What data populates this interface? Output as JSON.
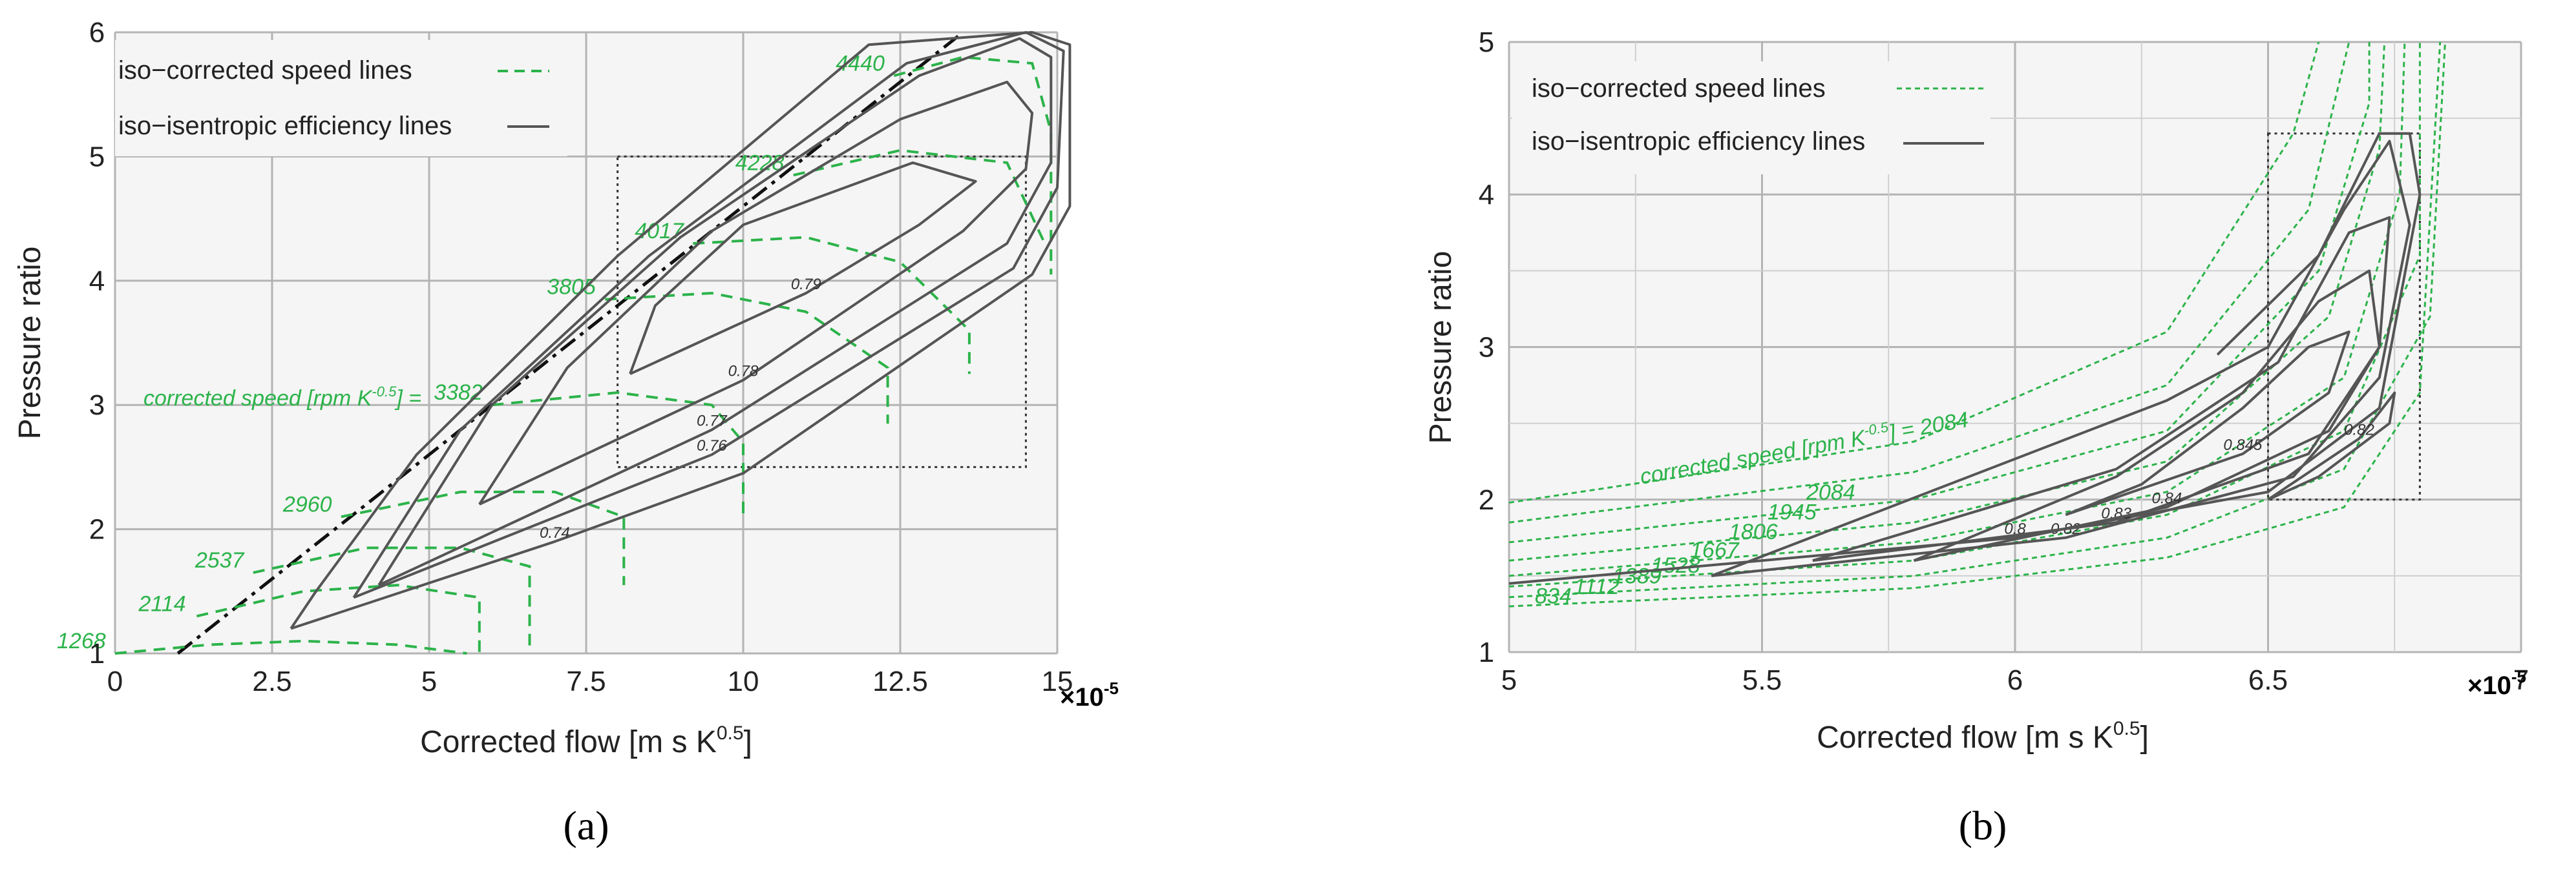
{
  "chart_data": [
    {
      "type": "line",
      "panel_label": "(a)",
      "xlabel": "Corrected  flow [m s K",
      "xlabel_sup": "0.5",
      "xlabel_end": "]",
      "ylabel": "Pressure ratio",
      "x_multiplier": "×10",
      "x_multiplier_exp": "-5",
      "xlim": [
        0,
        15
      ],
      "ylim": [
        1,
        6
      ],
      "xticks": [
        0,
        2.5,
        5,
        7.5,
        10,
        12.5,
        15
      ],
      "xtick_labels": [
        "0",
        "2.5",
        "5",
        "7.5",
        "10",
        "12.5",
        "15"
      ],
      "yticks": [
        1,
        2,
        3,
        4,
        5,
        6
      ],
      "ytick_labels": [
        "1",
        "2",
        "3",
        "4",
        "5",
        "6"
      ],
      "grid": true,
      "legend": [
        {
          "label": "iso−corrected speed lines",
          "style": "dashed",
          "color": "#2cb34a"
        },
        {
          "label": "iso−isentropic efficiency lines",
          "style": "solid",
          "color": "#555555"
        }
      ],
      "speed_prefix": "corrected speed [rpm K",
      "speed_prefix_sup": "-0.5",
      "speed_prefix_end": "] =",
      "zoom_box": {
        "x": [
          8,
          14.5
        ],
        "y": [
          2.5,
          5
        ]
      },
      "surge_line": [
        [
          1,
          1
        ],
        [
          13.5,
          6
        ]
      ],
      "speed_lines": [
        {
          "label": "1268",
          "points": [
            [
              0,
              1.0
            ],
            [
              1.5,
              1.07
            ],
            [
              3,
              1.1
            ],
            [
              4.5,
              1.07
            ],
            [
              5.6,
              1.0
            ]
          ]
        },
        {
          "label": "2114",
          "points": [
            [
              1.3,
              1.3
            ],
            [
              3,
              1.5
            ],
            [
              4.5,
              1.55
            ],
            [
              5.8,
              1.45
            ],
            [
              5.8,
              1.0
            ]
          ]
        },
        {
          "label": "2537",
          "points": [
            [
              2.2,
              1.65
            ],
            [
              4,
              1.85
            ],
            [
              5.5,
              1.85
            ],
            [
              6.6,
              1.7
            ],
            [
              6.6,
              1.05
            ]
          ]
        },
        {
          "label": "2960",
          "points": [
            [
              3.6,
              2.1
            ],
            [
              5.5,
              2.3
            ],
            [
              7,
              2.3
            ],
            [
              8.1,
              2.1
            ],
            [
              8.1,
              1.55
            ]
          ]
        },
        {
          "label": "3382",
          "points": [
            [
              6,
              3.0
            ],
            [
              8,
              3.1
            ],
            [
              9.5,
              3.0
            ],
            [
              10,
              2.7
            ],
            [
              10,
              2.1
            ]
          ]
        },
        {
          "label": "3805",
          "points": [
            [
              7.8,
              3.85
            ],
            [
              9.5,
              3.9
            ],
            [
              11,
              3.75
            ],
            [
              12.3,
              3.3
            ],
            [
              12.3,
              2.85
            ]
          ]
        },
        {
          "label": "4017",
          "points": [
            [
              9.2,
              4.3
            ],
            [
              11,
              4.35
            ],
            [
              12.5,
              4.15
            ],
            [
              13.6,
              3.6
            ],
            [
              13.6,
              3.25
            ]
          ]
        },
        {
          "label": "4228",
          "points": [
            [
              10.8,
              4.85
            ],
            [
              12.5,
              5.05
            ],
            [
              14.2,
              4.95
            ],
            [
              14.8,
              4.3
            ]
          ]
        },
        {
          "label": "4440",
          "points": [
            [
              12.4,
              5.65
            ],
            [
              13.5,
              5.8
            ],
            [
              14.6,
              5.75
            ],
            [
              14.9,
              5.2
            ],
            [
              14.9,
              4.05
            ]
          ]
        }
      ],
      "efficiency_lines": [
        {
          "label": "0.79",
          "points": [
            [
              8.2,
              3.25
            ],
            [
              11,
              3.9
            ],
            [
              12.8,
              4.45
            ],
            [
              13.7,
              4.8
            ],
            [
              12.7,
              4.95
            ],
            [
              10,
              4.45
            ],
            [
              8.6,
              3.8
            ],
            [
              8.2,
              3.25
            ]
          ]
        },
        {
          "label": "0.78",
          "points": [
            [
              5.8,
              2.2
            ],
            [
              10,
              3.2
            ],
            [
              13.5,
              4.4
            ],
            [
              14.5,
              4.9
            ],
            [
              14.6,
              5.35
            ],
            [
              14.2,
              5.6
            ],
            [
              12.5,
              5.3
            ],
            [
              9.5,
              4.4
            ],
            [
              7.2,
              3.3
            ],
            [
              5.8,
              2.2
            ]
          ]
        },
        {
          "label": "0.77",
          "points": [
            [
              4.2,
              1.55
            ],
            [
              9.5,
              2.8
            ],
            [
              14.2,
              4.3
            ],
            [
              14.9,
              4.95
            ],
            [
              14.9,
              5.8
            ],
            [
              14.4,
              5.95
            ],
            [
              12.8,
              5.65
            ],
            [
              9,
              4.35
            ],
            [
              6,
              3.0
            ],
            [
              4.2,
              1.55
            ]
          ]
        },
        {
          "label": "0.76",
          "points": [
            [
              3.8,
              1.45
            ],
            [
              9.5,
              2.6
            ],
            [
              14.3,
              4.1
            ],
            [
              15.0,
              4.75
            ],
            [
              15.1,
              5.85
            ],
            [
              14.5,
              6.0
            ],
            [
              12.6,
              5.75
            ],
            [
              8.5,
              4.2
            ],
            [
              5.5,
              2.8
            ],
            [
              3.8,
              1.45
            ]
          ]
        },
        {
          "label": "0.74",
          "points": [
            [
              2.8,
              1.2
            ],
            [
              7,
              1.9
            ],
            [
              10,
              2.45
            ],
            [
              14.6,
              4.05
            ],
            [
              15.2,
              4.6
            ],
            [
              15.2,
              5.9
            ],
            [
              14.6,
              6.0
            ],
            [
              12.0,
              5.9
            ],
            [
              8.0,
              4.2
            ],
            [
              4.8,
              2.6
            ],
            [
              3.2,
              1.5
            ],
            [
              2.8,
              1.2
            ]
          ]
        }
      ]
    },
    {
      "type": "line",
      "panel_label": "(b)",
      "xlabel": "Corrected  flow [m s K",
      "xlabel_sup": "0.5",
      "xlabel_end": "]",
      "ylabel": "Pressure ratio",
      "x_multiplier": "×10",
      "x_multiplier_exp": "-5",
      "xlim": [
        5,
        7
      ],
      "ylim": [
        1,
        5
      ],
      "xticks": [
        5,
        5.5,
        6,
        6.5,
        7
      ],
      "xtick_labels": [
        "5",
        "5.5",
        "6",
        "6.5",
        "7"
      ],
      "yticks": [
        1,
        2,
        3,
        4,
        5
      ],
      "ytick_labels": [
        "1",
        "2",
        "3",
        "4",
        "5"
      ],
      "grid": true,
      "legend": [
        {
          "label": "iso−corrected speed lines",
          "style": "dashed",
          "color": "#2cb34a"
        },
        {
          "label": "iso−isentropic efficiency lines",
          "style": "solid",
          "color": "#555555"
        }
      ],
      "speed_prefix": "corrected speed [rpm K",
      "speed_prefix_sup": "-0.5",
      "speed_prefix_end": "] = 2084",
      "zoom_box": {
        "x": [
          6.5,
          6.8
        ],
        "y": [
          2,
          4.4
        ]
      },
      "speed_lines": [
        {
          "label": "834",
          "points": [
            [
              5,
              1.3
            ],
            [
              5.8,
              1.42
            ],
            [
              6.3,
              1.62
            ],
            [
              6.65,
              1.95
            ],
            [
              6.8,
              2.7
            ],
            [
              6.84,
              5.0
            ]
          ]
        },
        {
          "label": "1112",
          "points": [
            [
              5,
              1.36
            ],
            [
              5.8,
              1.5
            ],
            [
              6.3,
              1.75
            ],
            [
              6.65,
              2.2
            ],
            [
              6.82,
              3.2
            ],
            [
              6.85,
              5.0
            ]
          ]
        },
        {
          "label": "1389",
          "points": [
            [
              5,
              1.43
            ],
            [
              5.8,
              1.6
            ],
            [
              6.3,
              1.9
            ],
            [
              6.65,
              2.45
            ],
            [
              6.8,
              3.6
            ],
            [
              6.8,
              5.0
            ]
          ]
        },
        {
          "label": "1528",
          "points": [
            [
              5,
              1.5
            ],
            [
              5.8,
              1.72
            ],
            [
              6.3,
              2.05
            ],
            [
              6.65,
              2.8
            ],
            [
              6.76,
              4.0
            ],
            [
              6.77,
              5.0
            ]
          ]
        },
        {
          "label": "1667",
          "points": [
            [
              5,
              1.6
            ],
            [
              5.8,
              1.85
            ],
            [
              6.3,
              2.25
            ],
            [
              6.62,
              3.2
            ],
            [
              6.72,
              4.3
            ],
            [
              6.73,
              5.0
            ]
          ]
        },
        {
          "label": "1806",
          "points": [
            [
              5,
              1.72
            ],
            [
              5.8,
              2.0
            ],
            [
              6.3,
              2.45
            ],
            [
              6.6,
              3.5
            ],
            [
              6.7,
              4.6
            ],
            [
              6.7,
              5.0
            ]
          ]
        },
        {
          "label": "1945",
          "points": [
            [
              5,
              1.85
            ],
            [
              5.8,
              2.18
            ],
            [
              6.3,
              2.75
            ],
            [
              6.58,
              3.9
            ],
            [
              6.66,
              5.0
            ]
          ]
        },
        {
          "label": "2084",
          "points": [
            [
              5,
              1.98
            ],
            [
              5.8,
              2.38
            ],
            [
              6.3,
              3.1
            ],
            [
              6.55,
              4.4
            ],
            [
              6.6,
              5.0
            ]
          ]
        }
      ],
      "efficiency_lines": [
        {
          "label": "0.8",
          "points": [
            [
              5,
              1.45
            ],
            [
              6.0,
              1.75
            ],
            [
              6.5,
              2.05
            ],
            [
              6.72,
              2.6
            ],
            [
              6.8,
              4.0
            ],
            [
              6.78,
              4.4
            ],
            [
              6.72,
              4.4
            ],
            [
              6.6,
              3.6
            ],
            [
              6.4,
              2.95
            ]
          ]
        },
        {
          "label": "0.82",
          "points": [
            [
              5.4,
              1.5
            ],
            [
              6.1,
              1.75
            ],
            [
              6.55,
              2.15
            ],
            [
              6.72,
              2.8
            ],
            [
              6.78,
              3.8
            ],
            [
              6.74,
              4.35
            ],
            [
              6.65,
              3.9
            ],
            [
              6.5,
              3.0
            ],
            [
              6.3,
              2.65
            ],
            [
              5.4,
              1.5
            ]
          ]
        },
        {
          "label": "0.83",
          "points": [
            [
              5.6,
              1.6
            ],
            [
              6.2,
              1.85
            ],
            [
              6.58,
              2.3
            ],
            [
              6.72,
              3.0
            ],
            [
              6.74,
              3.85
            ],
            [
              6.66,
              3.75
            ],
            [
              6.52,
              2.9
            ],
            [
              6.2,
              2.2
            ],
            [
              5.6,
              1.6
            ]
          ]
        },
        {
          "label": "0.84",
          "points": [
            [
              5.8,
              1.6
            ],
            [
              6.3,
              1.95
            ],
            [
              6.62,
              2.45
            ],
            [
              6.72,
              3.0
            ],
            [
              6.7,
              3.5
            ],
            [
              6.6,
              3.3
            ],
            [
              6.45,
              2.7
            ],
            [
              6.2,
              2.15
            ],
            [
              5.8,
              1.6
            ]
          ]
        },
        {
          "label": "0.845",
          "points": [
            [
              6.1,
              1.9
            ],
            [
              6.45,
              2.3
            ],
            [
              6.62,
              2.7
            ],
            [
              6.66,
              3.1
            ],
            [
              6.58,
              3.0
            ],
            [
              6.45,
              2.6
            ],
            [
              6.25,
              2.1
            ],
            [
              6.1,
              1.9
            ]
          ]
        },
        {
          "label": "0.82",
          "points": [
            [
              6.5,
              2.0
            ],
            [
              6.68,
              2.4
            ],
            [
              6.75,
              2.7
            ],
            [
              6.74,
              2.5
            ],
            [
              6.6,
              2.15
            ],
            [
              6.5,
              2.0
            ]
          ]
        }
      ]
    }
  ]
}
